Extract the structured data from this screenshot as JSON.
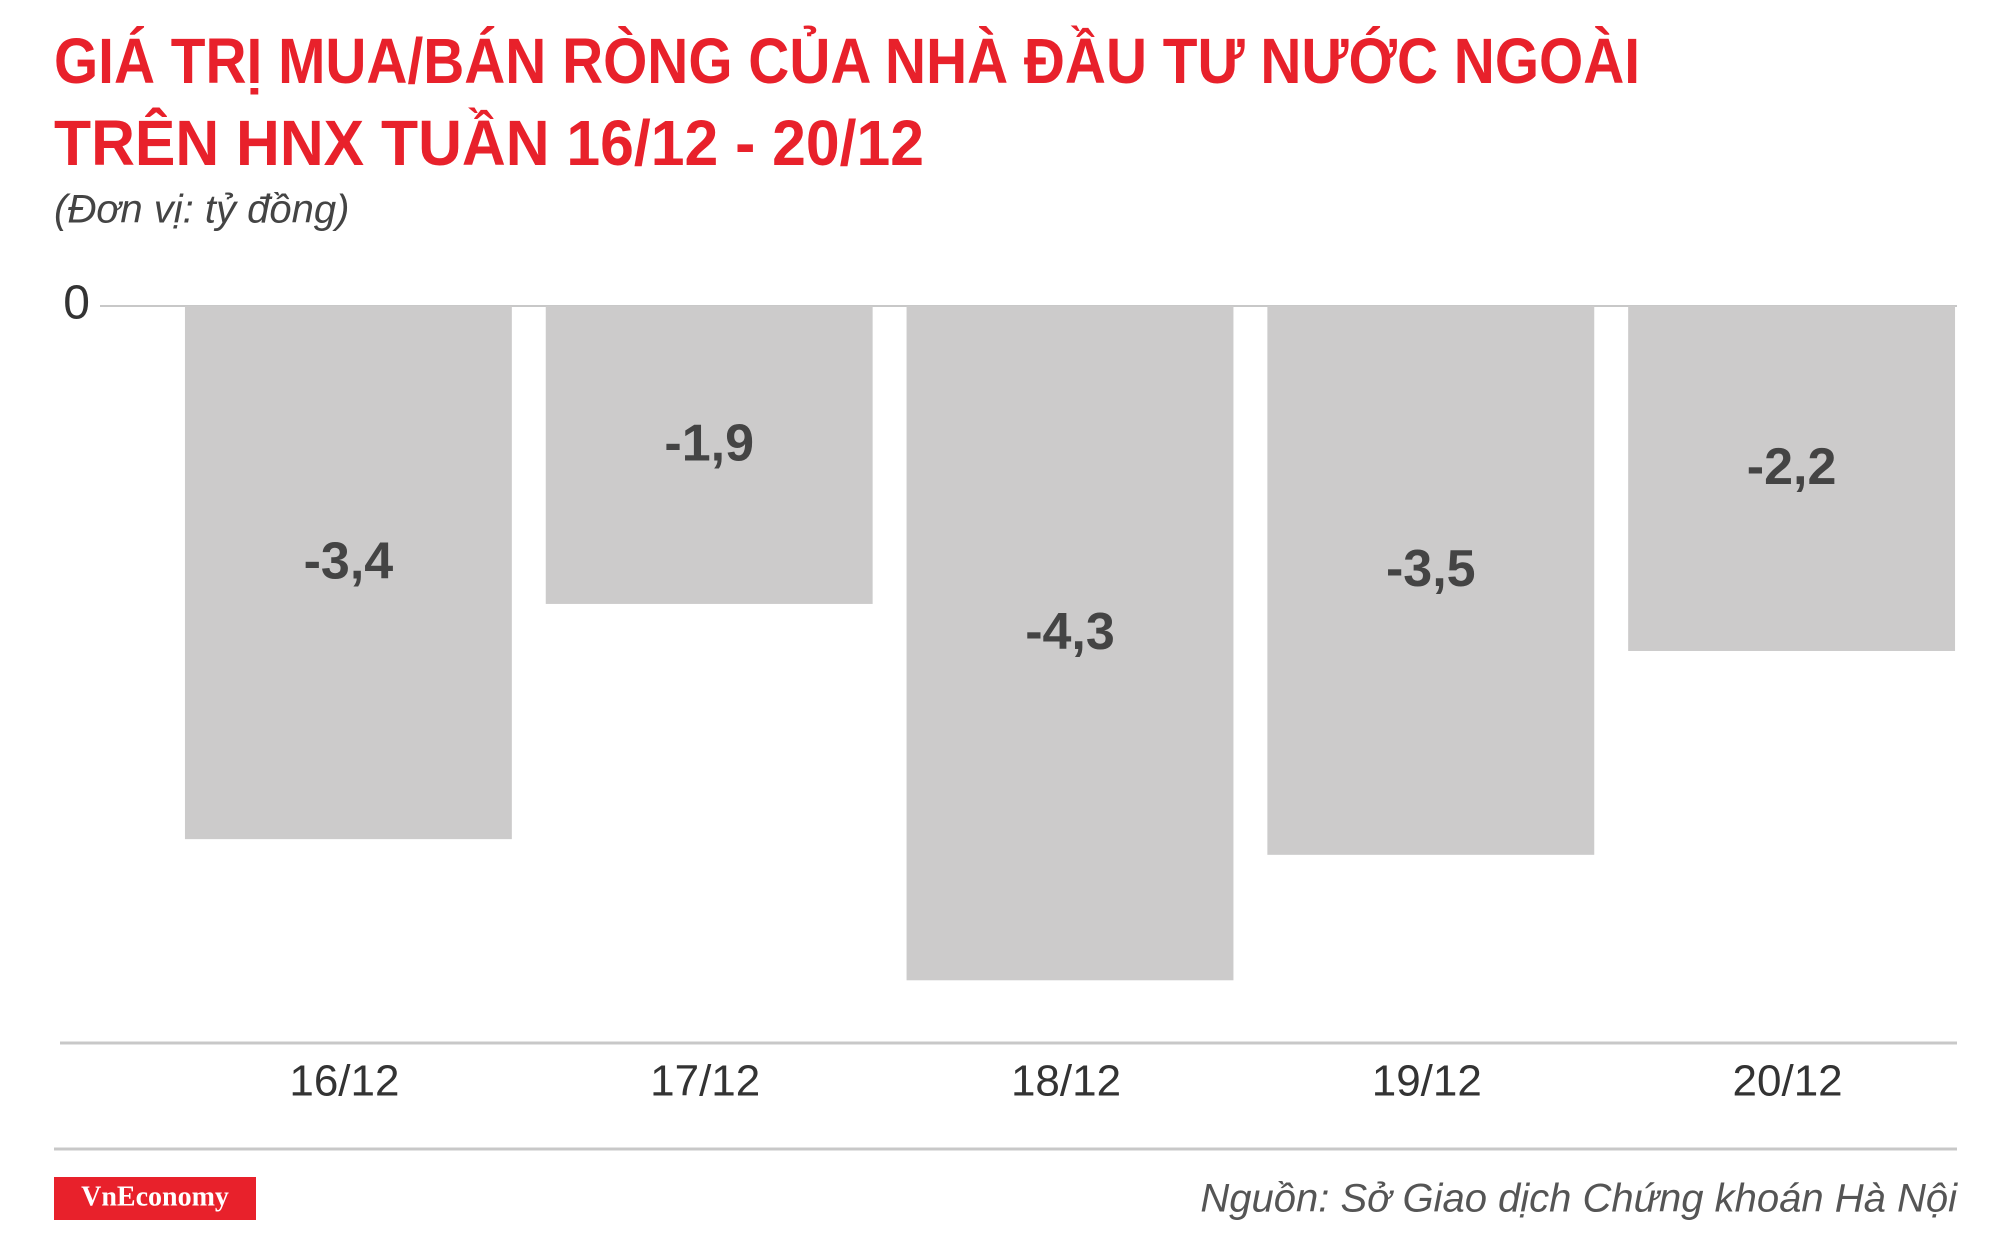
{
  "chart_data": {
    "type": "bar",
    "title": [
      "GIÁ TRỊ MUA/BÁN RÒNG CỦA NHÀ ĐẦU TƯ NƯỚC NGOÀI",
      "TRÊN HNX TUẦN 16/12 - 20/12"
    ],
    "subtitle": "(Đơn vị: tỷ đồng)",
    "categories": [
      "16/12",
      "17/12",
      "18/12",
      "19/12",
      "20/12"
    ],
    "values": [
      -3.4,
      -1.9,
      -4.3,
      -3.5,
      -2.2
    ],
    "value_labels": [
      "-3,4",
      "-1,9",
      "-4,3",
      "-3,5",
      "-2,2"
    ],
    "color": "#cccbcb",
    "ylim": [
      -4.7,
      0
    ],
    "yticks": [
      0
    ],
    "grid": true
  },
  "footer": {
    "logo": "VnEconomy",
    "source": "Nguồn: Sở Giao dịch Chứng khoán Hà Nội"
  }
}
